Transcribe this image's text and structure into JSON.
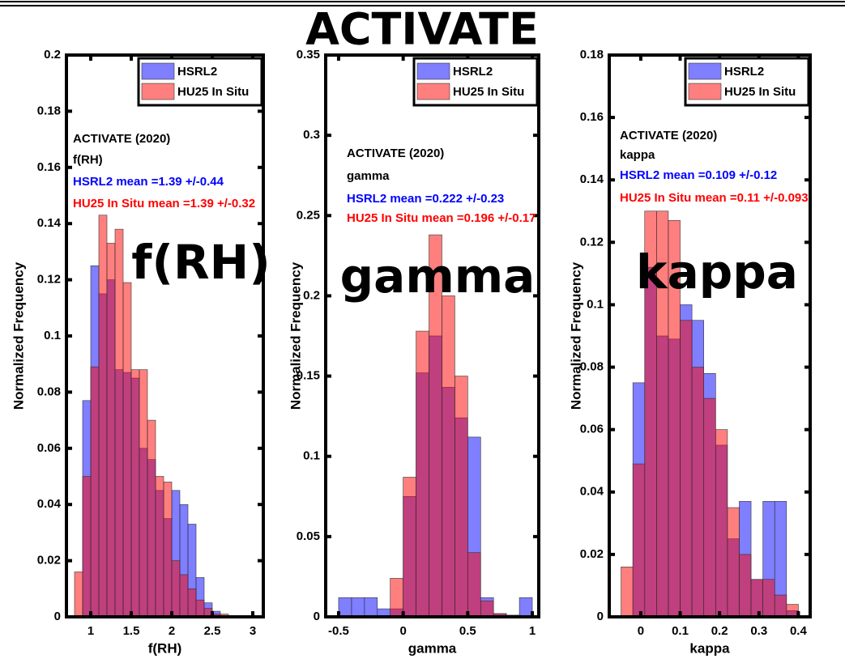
{
  "title": "ACTIVATE",
  "chart_data": [
    {
      "type": "histogram",
      "label": "f(RH)",
      "xlabel": "f(RH)",
      "ylabel": "Normalized Frequency",
      "bins": [
        0.8,
        0.9,
        1.0,
        1.1,
        1.2,
        1.3,
        1.4,
        1.5,
        1.6,
        1.7,
        1.8,
        1.9,
        2.0,
        2.1,
        2.2,
        2.3,
        2.4,
        2.5,
        2.6,
        2.7,
        2.8,
        2.9
      ],
      "series": [
        {
          "name": "HSRL2",
          "color": "#0000ff",
          "values": [
            0,
            0.077,
            0.125,
            0.115,
            0.12,
            0.088,
            0.087,
            0.085,
            0.06,
            0.056,
            0.045,
            0.035,
            0.045,
            0.04,
            0.033,
            0.014,
            0.005,
            0.002,
            0,
            0,
            0
          ]
        },
        {
          "name": "HU25 In Situ",
          "color": "#ff0000",
          "values": [
            0.016,
            0.05,
            0.089,
            0.143,
            0.133,
            0.138,
            0.119,
            0.088,
            0.088,
            0.07,
            0.05,
            0.048,
            0.02,
            0.015,
            0.01,
            0.006,
            0.003,
            0.001,
            0.001,
            0,
            0
          ]
        }
      ],
      "xlim": [
        0.7,
        3.13
      ],
      "ylim": [
        0,
        0.2
      ],
      "xticks": [
        1,
        1.5,
        2,
        2.5,
        3
      ],
      "yticks": [
        0,
        0.02,
        0.04,
        0.06,
        0.08,
        0.1,
        0.12,
        0.14,
        0.16,
        0.18,
        0.2
      ],
      "annotations": [
        {
          "text": "ACTIVATE (2020)",
          "color": "#000000"
        },
        {
          "text": "f(RH)",
          "color": "#000000"
        },
        {
          "text": "HSRL2 mean =1.39 +/-0.44",
          "color": "#0000ff"
        },
        {
          "text": "HU25 In Situ mean =1.39 +/-0.32",
          "color": "#ff0000"
        }
      ]
    },
    {
      "type": "histogram",
      "label": "gamma",
      "xlabel": "gamma",
      "ylabel": "Normalized Frequency",
      "bins": [
        -0.5,
        -0.4,
        -0.3,
        -0.2,
        -0.1,
        0,
        0.1,
        0.2,
        0.3,
        0.4,
        0.5,
        0.6,
        0.7,
        0.8,
        0.9,
        1.0
      ],
      "series": [
        {
          "name": "HSRL2",
          "color": "#0000ff",
          "values": [
            0.012,
            0.012,
            0.012,
            0.005,
            0.005,
            0.075,
            0.152,
            0.175,
            0.143,
            0.124,
            0.112,
            0.012,
            0.002,
            0.001,
            0.012
          ]
        },
        {
          "name": "HU25 In Situ",
          "color": "#ff0000",
          "values": [
            0,
            0,
            0,
            0,
            0.024,
            0.087,
            0.178,
            0.238,
            0.2,
            0.15,
            0.04,
            0.01,
            0.002,
            0.001,
            0
          ]
        }
      ],
      "xlim": [
        -0.6,
        1.05
      ],
      "ylim": [
        0,
        0.35
      ],
      "xticks": [
        -0.5,
        0,
        0.5,
        1
      ],
      "yticks": [
        0,
        0.05,
        0.1,
        0.15,
        0.2,
        0.25,
        0.3,
        0.35
      ],
      "annotations": [
        {
          "text": "ACTIVATE (2020)",
          "color": "#000000"
        },
        {
          "text": "gamma",
          "color": "#000000"
        },
        {
          "text": "HSRL2 mean =0.222 +/-0.23",
          "color": "#0000ff"
        },
        {
          "text": "HU25 In Situ mean =0.196 +/-0.17",
          "color": "#ff0000"
        }
      ]
    },
    {
      "type": "histogram",
      "label": "kappa",
      "xlabel": "kappa",
      "ylabel": "Normalized Frequency",
      "bins": [
        -0.05,
        -0.02,
        0.01,
        0.04,
        0.07,
        0.1,
        0.13,
        0.16,
        0.19,
        0.22,
        0.25,
        0.28,
        0.31,
        0.34,
        0.37,
        0.4
      ],
      "series": [
        {
          "name": "HSRL2",
          "color": "#0000ff",
          "values": [
            0,
            0.075,
            0.112,
            0.09,
            0.089,
            0.1,
            0.095,
            0.078,
            0.055,
            0.025,
            0.037,
            0.012,
            0.037,
            0.037,
            0.002
          ]
        },
        {
          "name": "HU25 In Situ",
          "color": "#ff0000",
          "values": [
            0.016,
            0.049,
            0.13,
            0.13,
            0.127,
            0.095,
            0.08,
            0.07,
            0.06,
            0.035,
            0.02,
            0.012,
            0.012,
            0.007,
            0.004
          ]
        }
      ],
      "xlim": [
        -0.08,
        0.43
      ],
      "ylim": [
        0,
        0.18
      ],
      "xticks": [
        0,
        0.1,
        0.2,
        0.3,
        0.4
      ],
      "yticks": [
        0,
        0.02,
        0.04,
        0.06,
        0.08,
        0.1,
        0.12,
        0.14,
        0.16,
        0.18
      ],
      "annotations": [
        {
          "text": "ACTIVATE (2020)",
          "color": "#000000"
        },
        {
          "text": "kappa",
          "color": "#000000"
        },
        {
          "text": "HSRL2 mean =0.109 +/-0.12",
          "color": "#0000ff"
        },
        {
          "text": "HU25 In Situ mean =0.11 +/-0.093",
          "color": "#ff0000"
        }
      ]
    }
  ]
}
